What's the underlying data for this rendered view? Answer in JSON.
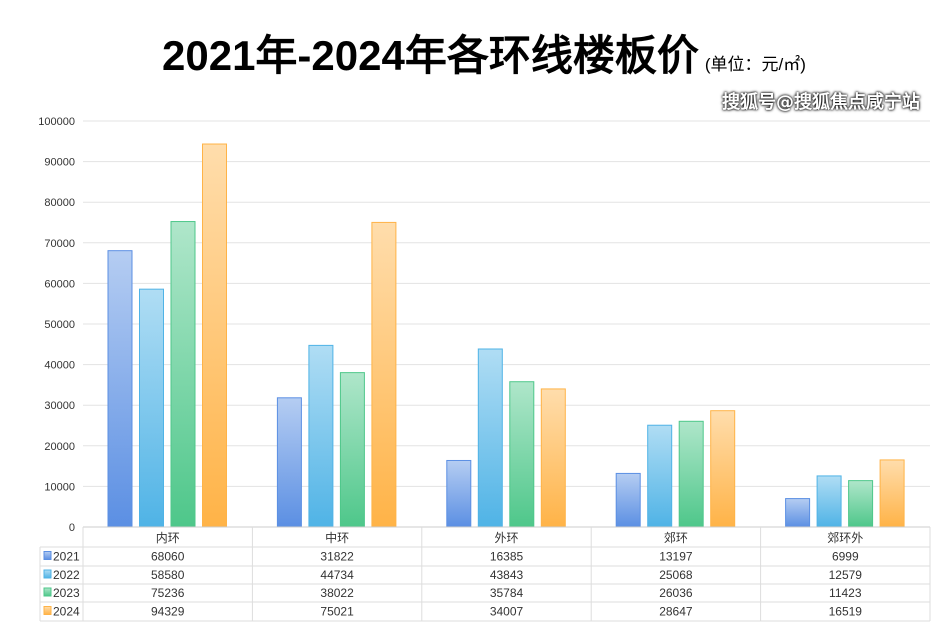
{
  "chart_data": {
    "type": "bar",
    "title": "2021年-2024年各环线楼板价",
    "unit": "(单位：元/㎡)",
    "categories": [
      "内环",
      "中环",
      "外环",
      "郊环",
      "郊环外"
    ],
    "series": [
      {
        "name": "2021",
        "values": [
          68060,
          31822,
          16385,
          13197,
          6999
        ],
        "color": "#5b8fe3"
      },
      {
        "name": "2022",
        "values": [
          58580,
          44734,
          43843,
          25068,
          12579
        ],
        "color": "#4fb3e6"
      },
      {
        "name": "2023",
        "values": [
          75236,
          38022,
          35784,
          26036,
          11423
        ],
        "color": "#4ec78a"
      },
      {
        "name": "2024",
        "values": [
          94329,
          75021,
          34007,
          28647,
          16519
        ],
        "color": "#ffb347"
      }
    ],
    "ylim": [
      0,
      100000
    ],
    "yticks": [
      0,
      10000,
      20000,
      30000,
      40000,
      50000,
      60000,
      70000,
      80000,
      90000,
      100000
    ],
    "grid": true,
    "legend": "data-table"
  },
  "watermark": "搜狐号@搜狐焦点咸宁站"
}
